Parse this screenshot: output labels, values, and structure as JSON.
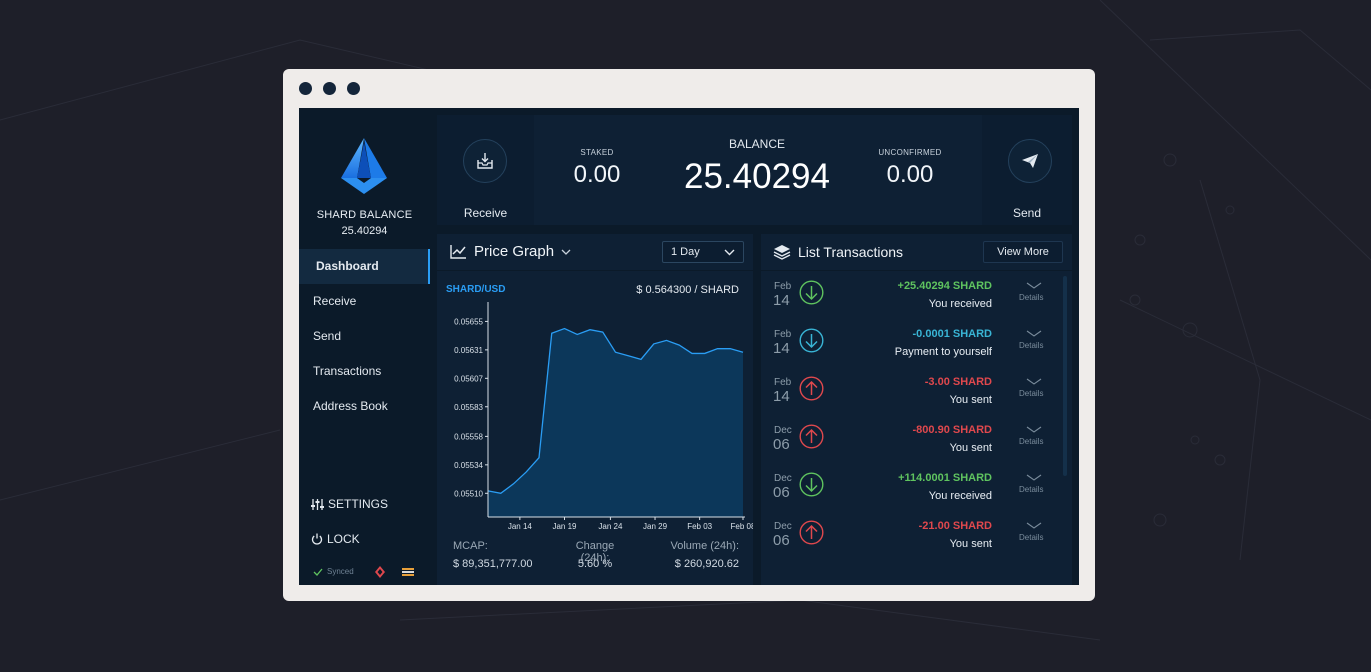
{
  "sidebar": {
    "balance_title": "SHARD BALANCE",
    "balance_value": "25.40294",
    "nav": [
      "Dashboard",
      "Receive",
      "Send",
      "Transactions",
      "Address Book"
    ],
    "active_index": 0,
    "settings_label": "SETTINGS",
    "lock_label": "LOCK",
    "synced_label": "Synced"
  },
  "balance_bar": {
    "receive_label": "Receive",
    "send_label": "Send",
    "staked_label": "STAKED",
    "staked_value": "0.00",
    "balance_label": "BALANCE",
    "balance_value": "25.40294",
    "unconfirmed_label": "UNCONFIRMED",
    "unconfirmed_value": "0.00"
  },
  "price_graph": {
    "title": "Price Graph",
    "range_select": "1 Day",
    "pair": "SHARD/USD",
    "current_price": "$ 0.564300 / SHARD",
    "mcap_label": "MCAP:",
    "mcap_value": "$ 89,351,777.00",
    "change_label": "Change (24h):",
    "change_value": "5.60 %",
    "volume_label": "Volume (24h):",
    "volume_value": "$ 260,920.62"
  },
  "chart_data": {
    "type": "area",
    "title": "",
    "xlabel": "",
    "ylabel": "",
    "x_ticks": [
      "Jan 14",
      "Jan 19",
      "Jan 24",
      "Jan 29",
      "Feb 03",
      "Feb 08"
    ],
    "y_ticks": [
      "0.05510",
      "0.05534",
      "0.05558",
      "0.05583",
      "0.05607",
      "0.05631",
      "0.05655"
    ],
    "ylim": [
      0.0549,
      0.05668
    ],
    "x": [
      0,
      1,
      2,
      3,
      4,
      5,
      6,
      7,
      8,
      9,
      10,
      11,
      12,
      13,
      14,
      15,
      16,
      17,
      18,
      19,
      20
    ],
    "y": [
      0.05512,
      0.0551,
      0.05518,
      0.05528,
      0.0554,
      0.05645,
      0.05649,
      0.05644,
      0.05648,
      0.05646,
      0.05629,
      0.05626,
      0.05623,
      0.05636,
      0.05639,
      0.05635,
      0.05628,
      0.05628,
      0.05632,
      0.05632,
      0.05629
    ],
    "x_tick_positions": [
      2.5,
      6,
      9.6,
      13.1,
      16.6,
      20
    ],
    "color": "#2a9df4",
    "fill": "#0c3a5e",
    "grid": false
  },
  "transactions": {
    "title": "List Transactions",
    "view_more": "View More",
    "details_label": "Details",
    "items": [
      {
        "month": "Feb",
        "day": "14",
        "amount": "+25.40294 SHARD",
        "desc": "You received",
        "type": "in"
      },
      {
        "month": "Feb",
        "day": "14",
        "amount": "-0.0001 SHARD",
        "desc": "Payment to yourself",
        "type": "self"
      },
      {
        "month": "Feb",
        "day": "14",
        "amount": "-3.00 SHARD",
        "desc": "You sent",
        "type": "out"
      },
      {
        "month": "Dec",
        "day": "06",
        "amount": "-800.90 SHARD",
        "desc": "You sent",
        "type": "out"
      },
      {
        "month": "Dec",
        "day": "06",
        "amount": "+114.0001 SHARD",
        "desc": "You received",
        "type": "in"
      },
      {
        "month": "Dec",
        "day": "06",
        "amount": "-21.00 SHARD",
        "desc": "You sent",
        "type": "out"
      }
    ]
  },
  "colors": {
    "in": "#5fc35f",
    "self": "#39b5d6",
    "out": "#e0484d",
    "accent": "#2a9df4"
  }
}
